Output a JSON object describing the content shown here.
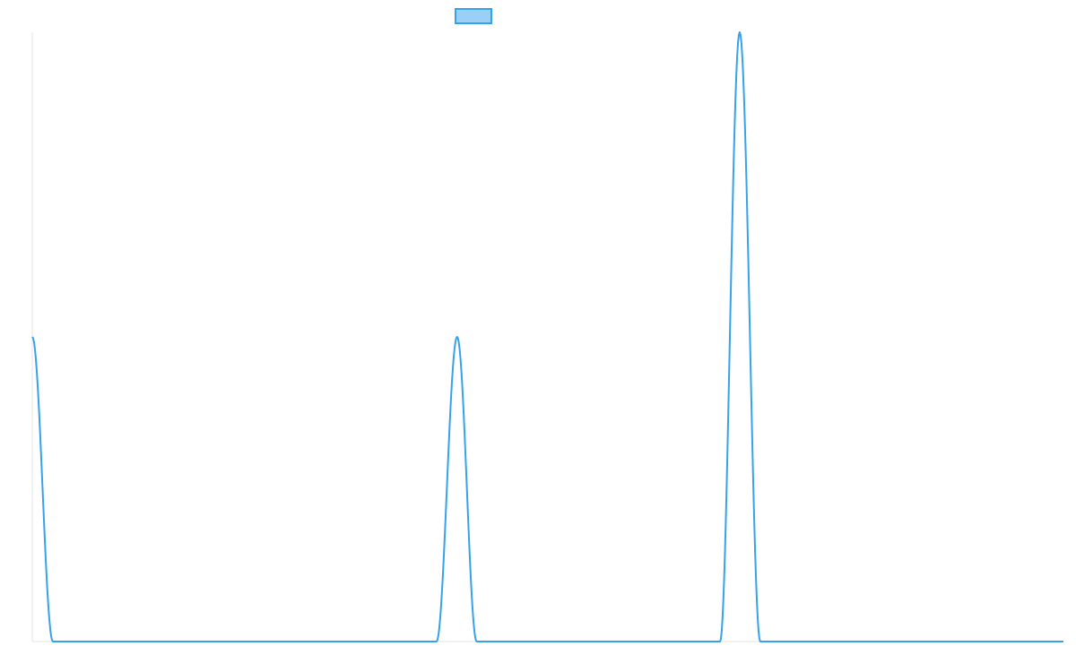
{
  "chart_data": {
    "type": "line",
    "title": "",
    "xlabel": "",
    "ylabel": "",
    "grid": false,
    "legend": {
      "placement": "top-center",
      "label": ""
    },
    "colors": {
      "line": "#36a2eb",
      "legend_fill": "#9ad0f5",
      "legend_stroke": "#36a2eb",
      "axis": "#e5e5e5"
    },
    "xlim": [
      0,
      100
    ],
    "ylim": [
      0,
      2
    ],
    "series": [
      {
        "values": [
          [
            0,
            1.0
          ],
          [
            2,
            0.0
          ],
          [
            39.2,
            0.0
          ],
          [
            41.2,
            1.0
          ],
          [
            43.1,
            0.0
          ],
          [
            66.7,
            0.0
          ],
          [
            68.6,
            2.0
          ],
          [
            70.6,
            0.0
          ],
          [
            100,
            0.0
          ]
        ]
      }
    ]
  }
}
